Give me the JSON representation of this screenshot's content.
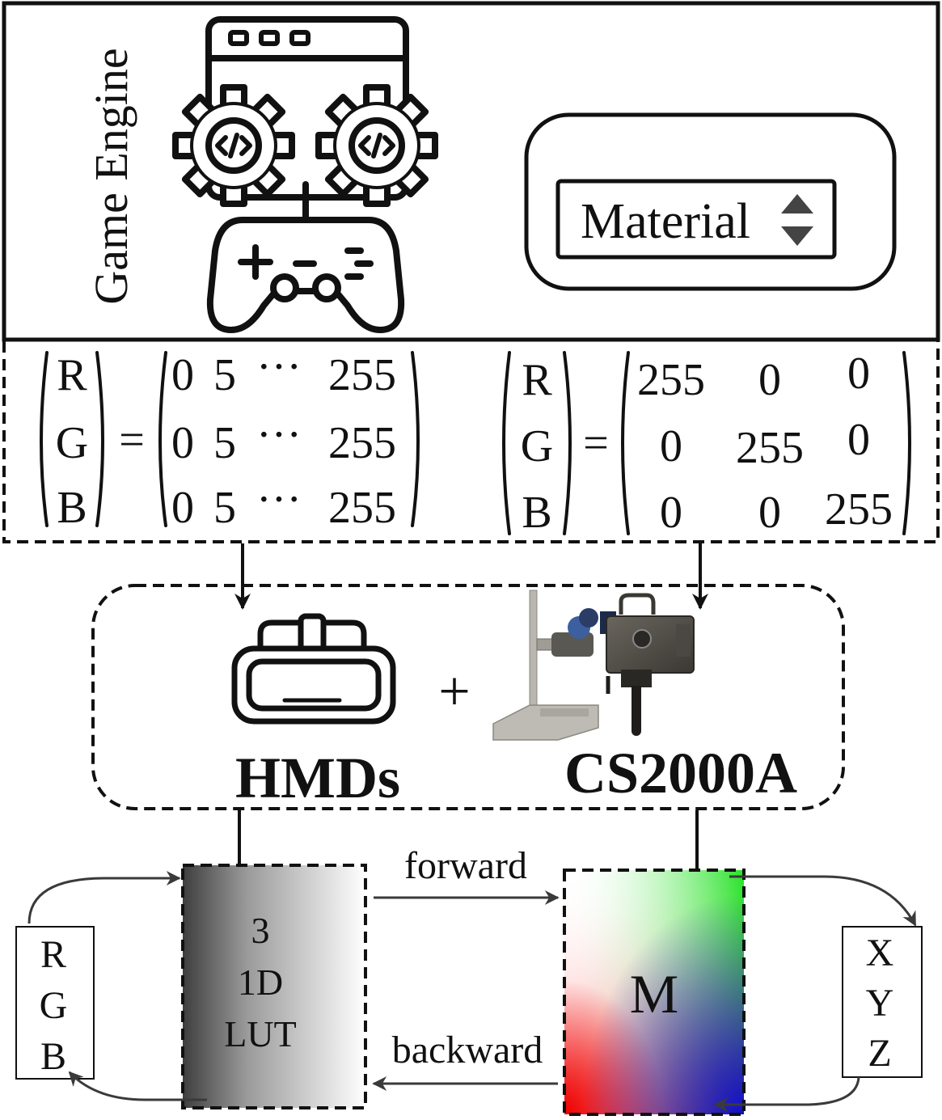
{
  "engine": {
    "title": "Game Engine",
    "dropdown_value": "Material",
    "icons": [
      "browser-window-icon",
      "code-gear-icon",
      "gamepad-icon",
      "dropdown-arrows-icon"
    ]
  },
  "matrix_left": {
    "lhs": [
      "R",
      "G",
      "B"
    ],
    "eq": "=",
    "rows": [
      [
        "0",
        "5",
        "···",
        "255"
      ],
      [
        "0",
        "5",
        "···",
        "255"
      ],
      [
        "0",
        "5",
        "···",
        "255"
      ]
    ]
  },
  "matrix_right": {
    "lhs": [
      "R",
      "G",
      "B"
    ],
    "eq": "=",
    "rows": [
      [
        "255",
        "0",
        "0"
      ],
      [
        "0",
        "255",
        "0"
      ],
      [
        "0",
        "0",
        "255"
      ]
    ]
  },
  "devices": {
    "hmd_label": "HMDs",
    "plus": "+",
    "meter_label": "CS2000A"
  },
  "pipeline": {
    "rgb": [
      "R",
      "G",
      "B"
    ],
    "lut": [
      "3",
      "1D",
      "LUT"
    ],
    "matrix": "M",
    "xyz": [
      "X",
      "Y",
      "Z"
    ],
    "forward": "forward",
    "backward": "backward"
  },
  "colors": {
    "line": "#111111",
    "arrow_grey": "#3a3a3a",
    "lut_dark": "#404040",
    "lut_light": "#ffffff",
    "m_green": "#00dd00",
    "m_red": "#ee0000",
    "m_blue": "#1010cc"
  }
}
